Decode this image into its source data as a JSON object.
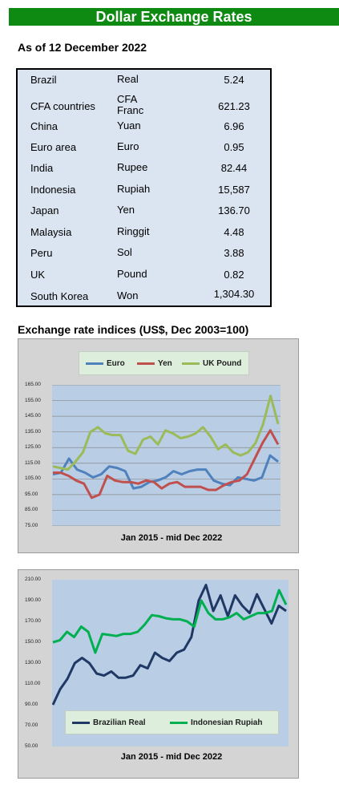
{
  "title": "Dollar Exchange Rates",
  "as_of": "As of 12 December 2022",
  "rates": [
    {
      "country": "Brazil",
      "currency": "Real",
      "value": "5.24"
    },
    {
      "country": "CFA countries",
      "currency": "CFA Franc",
      "value": "621.23"
    },
    {
      "country": "China",
      "currency": "Yuan",
      "value": "6.96"
    },
    {
      "country": "Euro area",
      "currency": "Euro",
      "value": "0.95"
    },
    {
      "country": "India",
      "currency": "Rupee",
      "value": "82.44"
    },
    {
      "country": "Indonesia",
      "currency": "Rupiah",
      "value": "15,587"
    },
    {
      "country": "Japan",
      "currency": "Yen",
      "value": "136.70"
    },
    {
      "country": "Malaysia",
      "currency": "Ringgit",
      "value": "4.48"
    },
    {
      "country": "Peru",
      "currency": "Sol",
      "value": "3.88"
    },
    {
      "country": "UK",
      "currency": "Pound",
      "value": "0.82"
    },
    {
      "country": "South Korea",
      "currency": "Won",
      "value": "1,304.30"
    }
  ],
  "indices_heading": "Exchange rate indices (US$, Dec 2003=100)",
  "chart_data": [
    {
      "type": "line",
      "title": "",
      "xlabel": "Jan 2015 -  mid Dec 2022",
      "ylabel": "",
      "ylim": [
        75,
        165
      ],
      "yticks": [
        "165.00",
        "155.00",
        "145.00",
        "135.00",
        "125.00",
        "115.00",
        "105.00",
        "95.00",
        "85.00",
        "75.00"
      ],
      "grid": true,
      "legend_position": "top",
      "x_start": "2015-01",
      "x_end": "2022-12",
      "series": [
        {
          "name": "Euro",
          "color": "#4f81bd",
          "values": [
            108,
            109,
            118,
            111,
            109,
            106,
            108,
            113,
            112,
            110,
            99,
            100,
            103,
            104,
            106,
            110,
            108,
            110,
            111,
            111,
            104,
            102,
            101,
            106,
            105,
            104,
            106,
            120,
            116
          ]
        },
        {
          "name": "Yen",
          "color": "#c0504d",
          "values": [
            109,
            109,
            107,
            104,
            102,
            93,
            95,
            107,
            104,
            103,
            103,
            102,
            104,
            103,
            99,
            102,
            103,
            100,
            100,
            100,
            98,
            98,
            101,
            103,
            104,
            108,
            118,
            128,
            136,
            127
          ]
        },
        {
          "name": "UK Pound",
          "color": "#9bbb59",
          "values": [
            113,
            112,
            111,
            116,
            122,
            135,
            138,
            134,
            133,
            133,
            123,
            121,
            130,
            132,
            127,
            136,
            134,
            131,
            132,
            134,
            138,
            132,
            124,
            127,
            122,
            120,
            122,
            128,
            140,
            158,
            140
          ]
        }
      ]
    },
    {
      "type": "line",
      "title": "",
      "xlabel": "Jan 2015 - mid Dec 2022",
      "ylabel": "",
      "ylim": [
        50,
        210
      ],
      "yticks": [
        "210.00",
        "190.00",
        "170.00",
        "150.00",
        "130.00",
        "110.00",
        "90.00",
        "70.00",
        "50.00"
      ],
      "grid": false,
      "legend_position": "bottom",
      "x_start": "2015-01",
      "x_end": "2022-12",
      "series": [
        {
          "name": "Brazilian Real",
          "color": "#1f3864",
          "values": [
            90,
            105,
            115,
            130,
            135,
            130,
            120,
            118,
            122,
            116,
            116,
            118,
            128,
            125,
            140,
            135,
            132,
            140,
            143,
            155,
            190,
            205,
            180,
            195,
            175,
            195,
            185,
            178,
            196,
            182,
            168,
            185,
            180
          ]
        },
        {
          "name": "Indonesian Rupiah",
          "color": "#00b050",
          "values": [
            150,
            152,
            160,
            155,
            165,
            160,
            140,
            158,
            157,
            156,
            158,
            158,
            160,
            167,
            176,
            175,
            173,
            172,
            172,
            170,
            165,
            190,
            178,
            172,
            172,
            174,
            178,
            172,
            175,
            178,
            178,
            180,
            200,
            186
          ]
        }
      ]
    }
  ]
}
